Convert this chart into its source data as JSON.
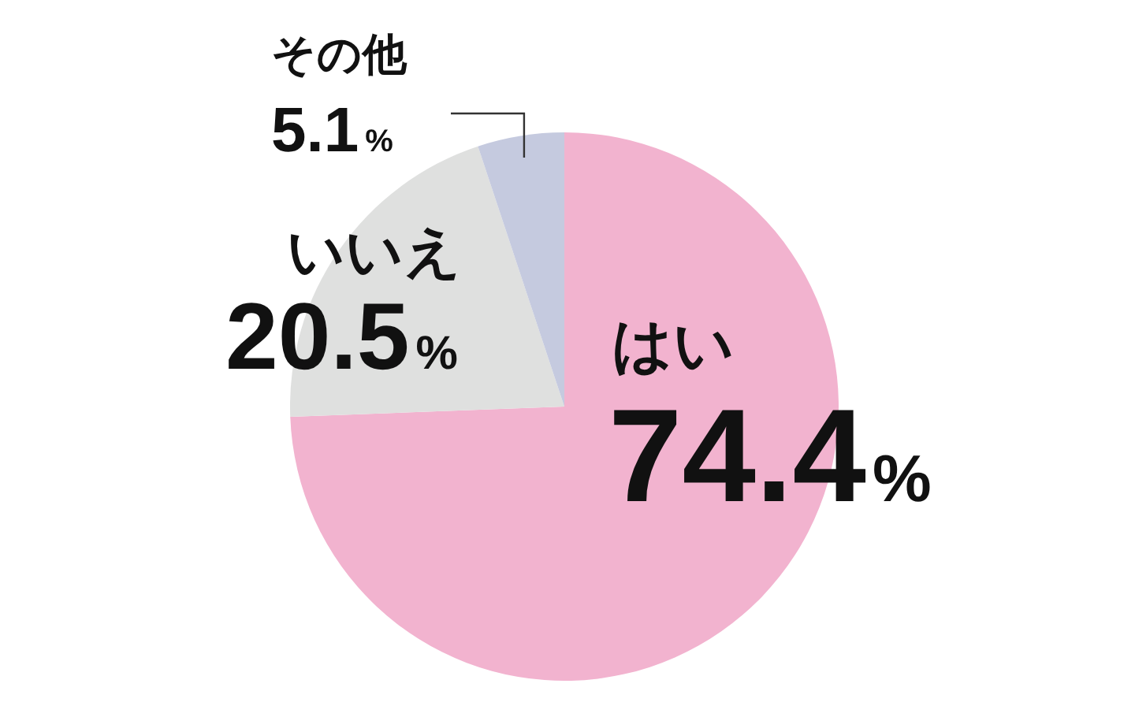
{
  "chart_data": {
    "type": "pie",
    "categories": [
      "はい",
      "いいえ",
      "その他"
    ],
    "values": [
      74.4,
      20.5,
      5.1
    ],
    "colors": [
      "#f2b3cf",
      "#dfe0df",
      "#c5cadf"
    ],
    "value_labels": [
      "74.4%",
      "20.5%",
      "5.1%"
    ]
  }
}
